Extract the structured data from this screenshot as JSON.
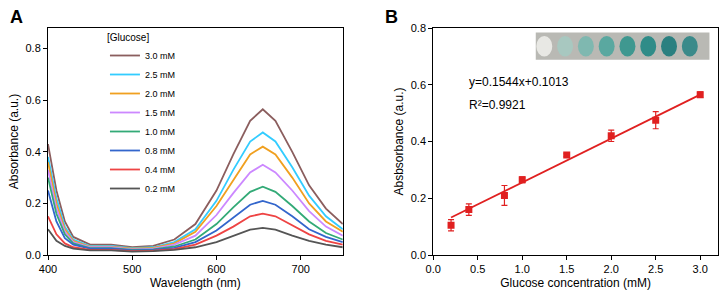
{
  "chart_data": [
    {
      "type": "line",
      "title": "A",
      "x_label": "Wavelength (nm)",
      "y_label": "Absorbance (a.u.)",
      "legend_title": "[Glucose]",
      "legend": "upper left",
      "x": [
        400,
        410,
        420,
        430,
        450,
        475,
        500,
        525,
        550,
        575,
        600,
        620,
        640,
        655,
        670,
        690,
        710,
        730,
        750
      ],
      "series": [
        {
          "name": "3.0 mM",
          "color": "#8b5e5e",
          "values": [
            0.43,
            0.25,
            0.13,
            0.07,
            0.04,
            0.04,
            0.03,
            0.035,
            0.06,
            0.12,
            0.25,
            0.39,
            0.52,
            0.565,
            0.52,
            0.4,
            0.27,
            0.18,
            0.12
          ]
        },
        {
          "name": "2.5 mM",
          "color": "#33ccff",
          "values": [
            0.38,
            0.22,
            0.11,
            0.06,
            0.035,
            0.035,
            0.027,
            0.03,
            0.05,
            0.1,
            0.21,
            0.33,
            0.44,
            0.475,
            0.44,
            0.34,
            0.23,
            0.15,
            0.1
          ]
        },
        {
          "name": "2.0 mM",
          "color": "#f0a020",
          "values": [
            0.36,
            0.2,
            0.1,
            0.055,
            0.032,
            0.032,
            0.025,
            0.028,
            0.045,
            0.09,
            0.19,
            0.29,
            0.39,
            0.42,
            0.39,
            0.3,
            0.2,
            0.13,
            0.09
          ]
        },
        {
          "name": "1.5 mM",
          "color": "#cc88ff",
          "values": [
            0.33,
            0.18,
            0.09,
            0.05,
            0.03,
            0.03,
            0.022,
            0.025,
            0.04,
            0.075,
            0.155,
            0.24,
            0.32,
            0.35,
            0.32,
            0.25,
            0.17,
            0.11,
            0.075
          ]
        },
        {
          "name": "1.0 mM",
          "color": "#33aa77",
          "values": [
            0.3,
            0.16,
            0.08,
            0.045,
            0.027,
            0.027,
            0.02,
            0.022,
            0.033,
            0.06,
            0.12,
            0.185,
            0.245,
            0.265,
            0.245,
            0.19,
            0.13,
            0.085,
            0.06
          ]
        },
        {
          "name": "0.8 mM",
          "color": "#3366cc",
          "values": [
            0.25,
            0.13,
            0.065,
            0.04,
            0.025,
            0.025,
            0.018,
            0.02,
            0.028,
            0.05,
            0.095,
            0.145,
            0.195,
            0.21,
            0.195,
            0.15,
            0.1,
            0.07,
            0.05
          ]
        },
        {
          "name": "0.4 mM",
          "color": "#ee4444",
          "values": [
            0.15,
            0.08,
            0.045,
            0.03,
            0.02,
            0.02,
            0.015,
            0.017,
            0.023,
            0.04,
            0.075,
            0.11,
            0.15,
            0.16,
            0.15,
            0.115,
            0.08,
            0.055,
            0.04
          ]
        },
        {
          "name": "0.2 mM",
          "color": "#555555",
          "values": [
            0.1,
            0.055,
            0.035,
            0.025,
            0.018,
            0.018,
            0.013,
            0.015,
            0.02,
            0.03,
            0.05,
            0.075,
            0.098,
            0.105,
            0.098,
            0.075,
            0.055,
            0.04,
            0.03
          ]
        }
      ],
      "xlim": [
        400,
        750
      ],
      "xticks": [
        400,
        500,
        600,
        700
      ],
      "ylim": [
        0,
        0.88
      ],
      "yticks": [
        {
          "value": 0,
          "label": "0.0"
        },
        0.2,
        0.4,
        0.6,
        0.8
      ]
    },
    {
      "type": "scatter",
      "title": "B",
      "x_label": "Glucose concentration (mM)",
      "y_label": "Absbsorbance (a.u.)",
      "annotations": [
        "y=0.1544x+0.1013",
        "R²=0.9921"
      ],
      "series": [
        {
          "type": "scatter",
          "marker": "square",
          "color": "#e02020",
          "x": [
            0.2,
            0.4,
            0.8,
            1.0,
            1.5,
            2.0,
            2.5,
            3.0
          ],
          "values": [
            0.105,
            0.16,
            0.21,
            0.265,
            0.352,
            0.42,
            0.475,
            0.565
          ],
          "error": [
            0.02,
            0.02,
            0.035,
            0.01,
            0.005,
            0.02,
            0.03,
            0.01
          ]
        },
        {
          "type": "line",
          "color": "#e02020",
          "x": [
            0.2,
            3.0
          ],
          "values": [
            0.132,
            0.565
          ]
        }
      ],
      "xlim": [
        0,
        3.2
      ],
      "xticks": [
        {
          "value": 0,
          "label": "0.0"
        },
        0.5,
        {
          "value": 1,
          "label": "1.0"
        },
        1.5,
        {
          "value": 2,
          "label": "2.0"
        },
        2.5,
        {
          "value": 3,
          "label": "3.0"
        }
      ],
      "ylim": [
        0,
        0.8
      ],
      "yticks": [
        {
          "value": 0,
          "label": "0.0"
        },
        0.2,
        0.4,
        0.6,
        0.8
      ]
    }
  ]
}
